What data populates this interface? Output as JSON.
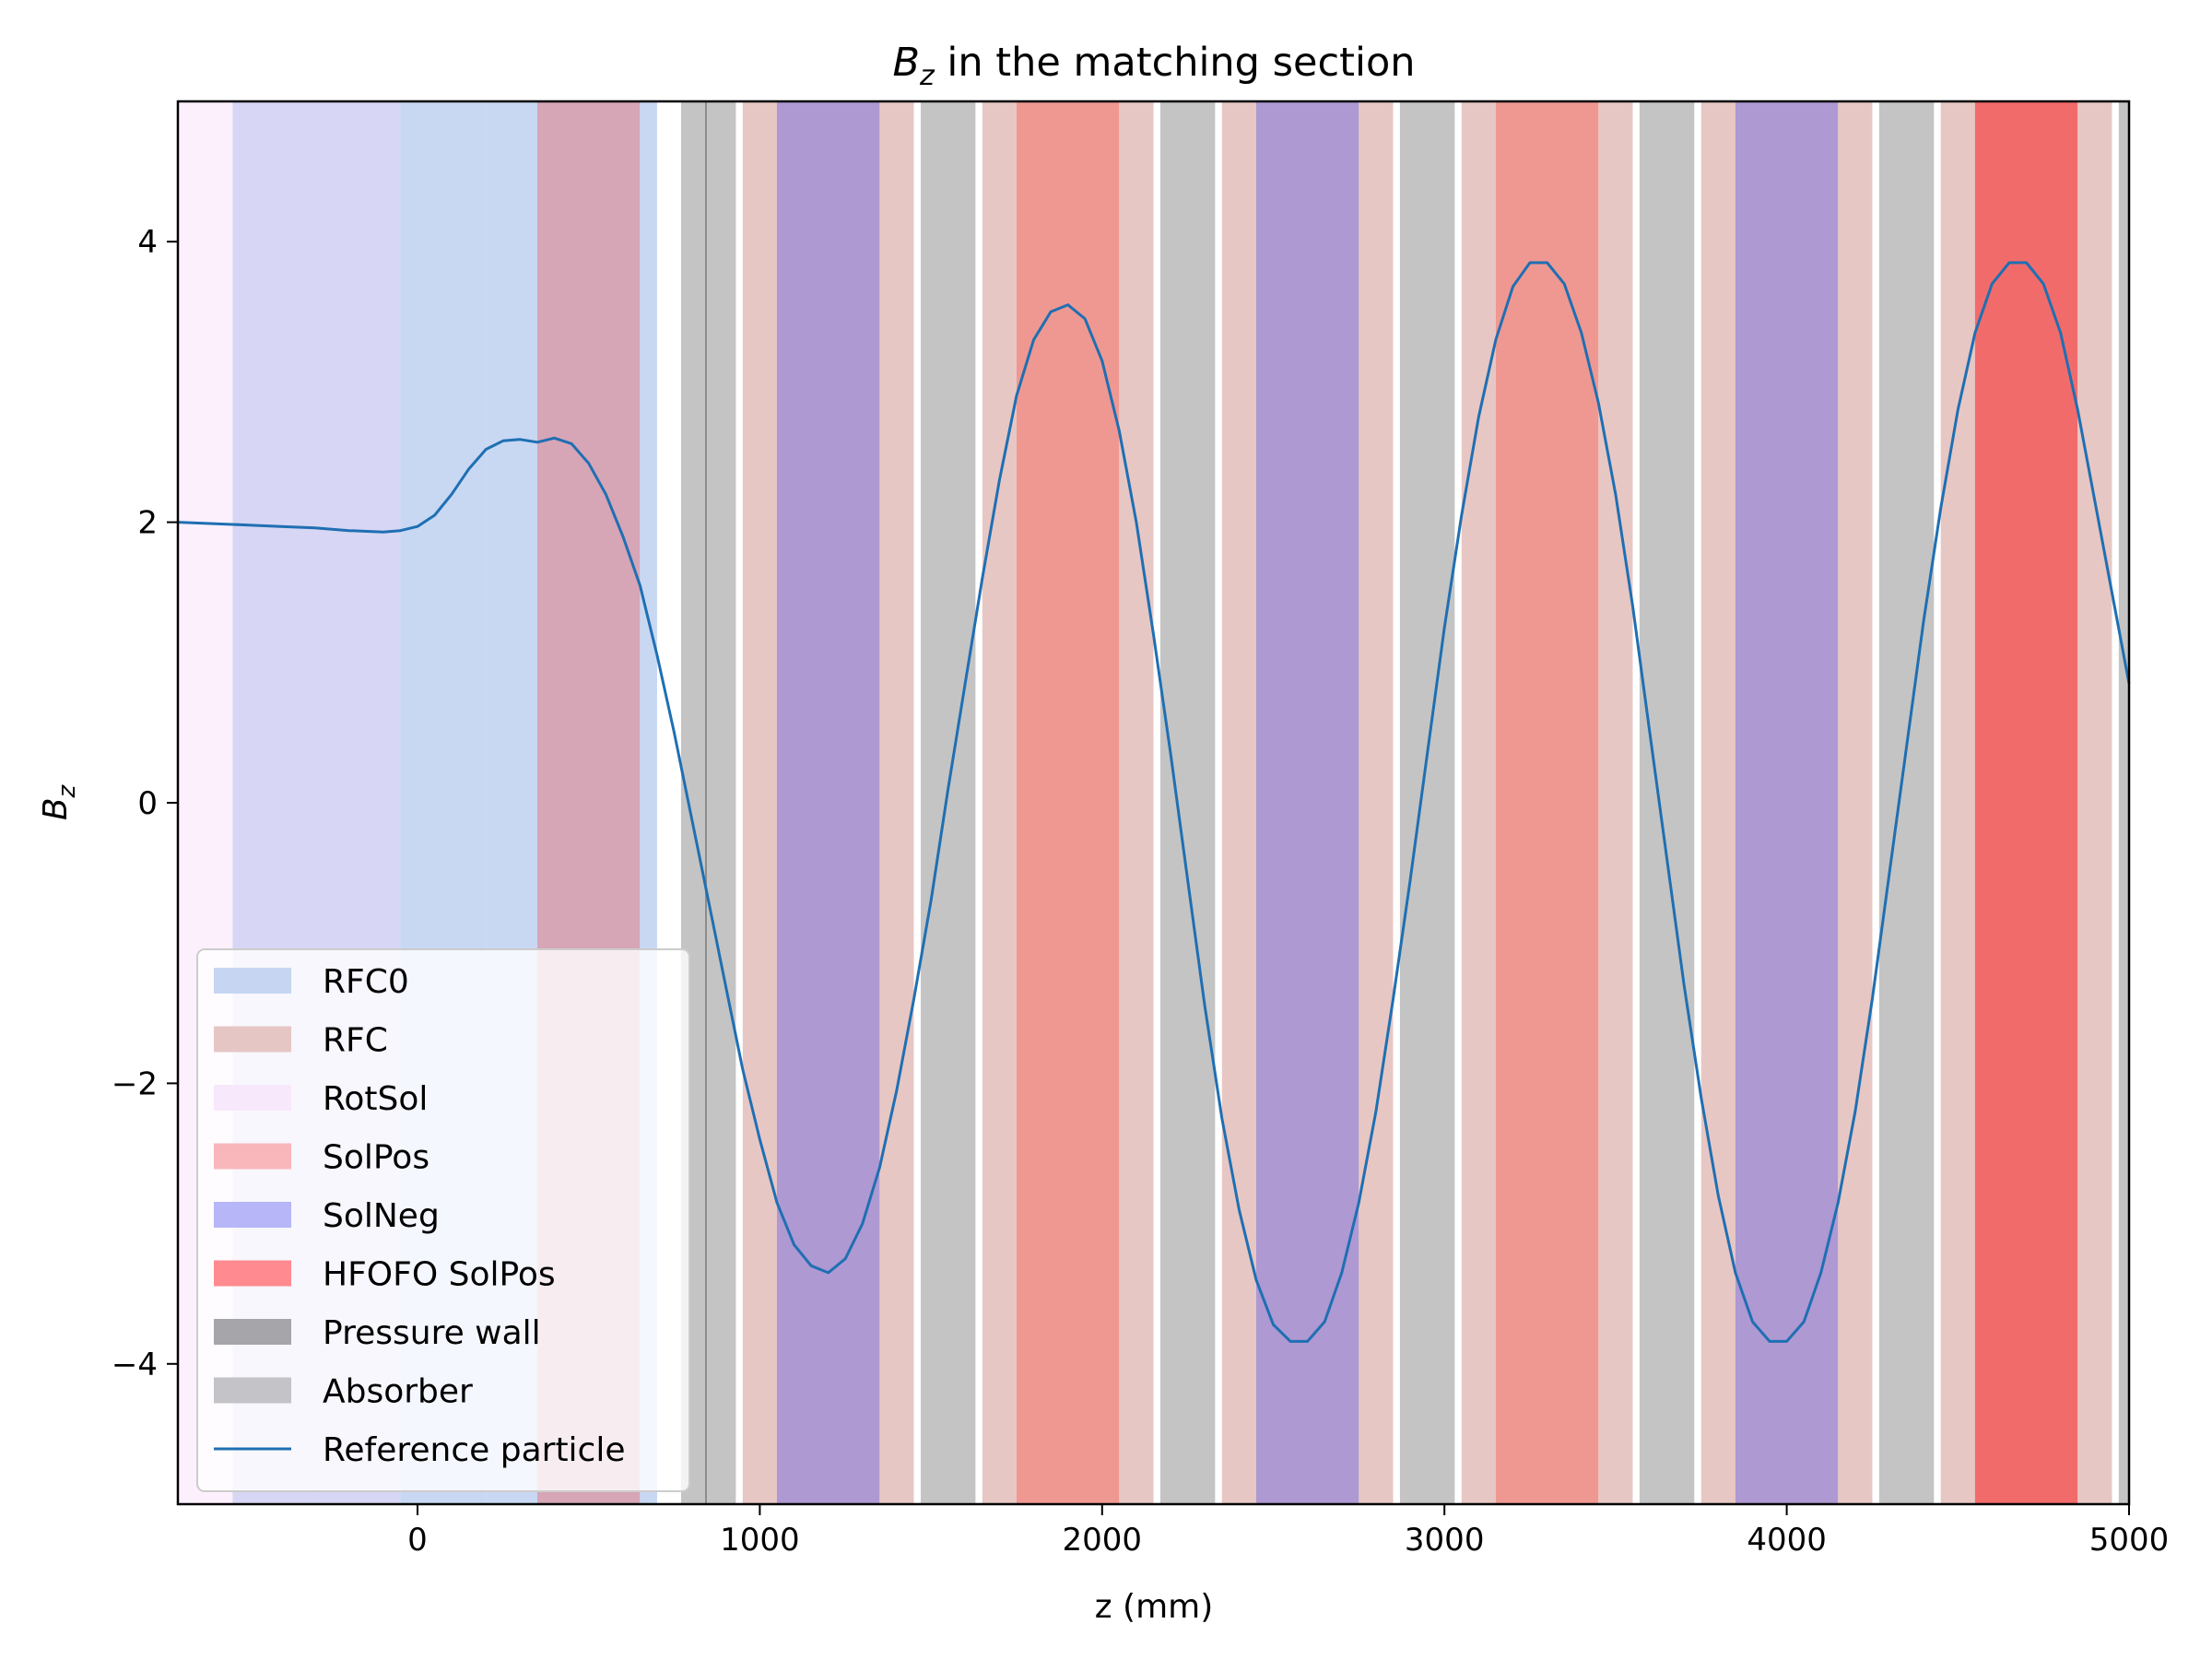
{
  "chart_data": {
    "type": "line",
    "title": "B_z in the matching section",
    "title_symbol": "B",
    "title_subscript": "z",
    "title_rest": " in the matching section",
    "xlabel": "z (mm)",
    "ylabel_symbol": "B",
    "ylabel_subscript": "z",
    "xlim": [
      -700,
      5000
    ],
    "ylim": [
      -5,
      5
    ],
    "xticks": [
      0,
      1000,
      2000,
      3000,
      4000,
      5000
    ],
    "xtick_labels": [
      "0",
      "1000",
      "2000",
      "3000",
      "4000",
      "5000"
    ],
    "yticks": [
      -4,
      -2,
      0,
      2,
      4
    ],
    "ytick_labels": [
      "−4",
      "−2",
      "0",
      "2",
      "4"
    ],
    "grid": false,
    "legend_position": "lower-left",
    "legend": [
      {
        "label": "RFC0",
        "color": "#c6d6f2",
        "kind": "patch"
      },
      {
        "label": "RFC",
        "color": "#e6c6c4",
        "kind": "patch"
      },
      {
        "label": "RotSol",
        "color": "#f8e8fb",
        "kind": "patch"
      },
      {
        "label": "SolPos",
        "color": "#f9b6bb",
        "kind": "patch"
      },
      {
        "label": "SolNeg",
        "color": "#b6b6f8",
        "kind": "patch"
      },
      {
        "label": "HFOFO SolPos",
        "color": "#ff8a8f",
        "kind": "patch"
      },
      {
        "label": "Pressure wall",
        "color": "#a6a6aa",
        "kind": "patch"
      },
      {
        "label": "Absorber",
        "color": "#c3c3c8",
        "kind": "patch"
      },
      {
        "label": "Reference particle",
        "color": "#1f6fb2",
        "kind": "line"
      }
    ],
    "regions": [
      {
        "category": "RotSol",
        "x0": -700,
        "x1": -540,
        "color": "#fdf0fd"
      },
      {
        "category": "RotSol",
        "x0": -540,
        "x1": -300,
        "color": "#d7d6f4"
      },
      {
        "category": "RotSol",
        "x0": -300,
        "x1": -50,
        "color": "#d7d6f4"
      },
      {
        "category": "RFC0",
        "x0": -50,
        "x1": 200,
        "color": "#c8d8f3"
      },
      {
        "category": "RFC0",
        "x0": 200,
        "x1": 350,
        "color": "#c8d8f3"
      },
      {
        "category": "RFC0",
        "x0": 350,
        "x1": 650,
        "color": "#d6a5b6"
      },
      {
        "category": "RFC0",
        "x0": 650,
        "x1": 700,
        "color": "#c8d8f3"
      },
      {
        "category": "Absorber",
        "x0": 770,
        "x1": 840,
        "color": "#c4c4c4"
      },
      {
        "category": "Pressure wall",
        "x0": 840,
        "x1": 846,
        "color": "#8c8c8c"
      },
      {
        "category": "Absorber",
        "x0": 846,
        "x1": 930,
        "color": "#c4c4c4"
      },
      {
        "category": "RFC",
        "x0": 950,
        "x1": 1050,
        "color": "#e7c7c4"
      },
      {
        "category": "SolNeg",
        "x0": 1050,
        "x1": 1350,
        "color": "#ae99d3"
      },
      {
        "category": "RFC",
        "x0": 1350,
        "x1": 1450,
        "color": "#e7c7c4"
      },
      {
        "category": "Absorber",
        "x0": 1470,
        "x1": 1630,
        "color": "#c4c4c4"
      },
      {
        "category": "RFC",
        "x0": 1650,
        "x1": 1750,
        "color": "#e7c7c4"
      },
      {
        "category": "SolPos",
        "x0": 1750,
        "x1": 2050,
        "color": "#ef9892"
      },
      {
        "category": "RFC",
        "x0": 2050,
        "x1": 2150,
        "color": "#e7c7c4"
      },
      {
        "category": "Absorber",
        "x0": 2170,
        "x1": 2330,
        "color": "#c4c4c4"
      },
      {
        "category": "RFC",
        "x0": 2350,
        "x1": 2450,
        "color": "#e7c7c4"
      },
      {
        "category": "SolNeg",
        "x0": 2450,
        "x1": 2750,
        "color": "#ae99d3"
      },
      {
        "category": "RFC",
        "x0": 2750,
        "x1": 2850,
        "color": "#e7c7c4"
      },
      {
        "category": "Absorber",
        "x0": 2870,
        "x1": 3030,
        "color": "#c4c4c4"
      },
      {
        "category": "RFC",
        "x0": 3050,
        "x1": 3150,
        "color": "#e7c7c4"
      },
      {
        "category": "SolPos",
        "x0": 3150,
        "x1": 3450,
        "color": "#ef9892"
      },
      {
        "category": "RFC",
        "x0": 3450,
        "x1": 3550,
        "color": "#e7c7c4"
      },
      {
        "category": "Absorber",
        "x0": 3570,
        "x1": 3730,
        "color": "#c4c4c4"
      },
      {
        "category": "RFC",
        "x0": 3750,
        "x1": 3850,
        "color": "#e7c7c4"
      },
      {
        "category": "SolNeg",
        "x0": 3850,
        "x1": 4150,
        "color": "#ae99d3"
      },
      {
        "category": "RFC",
        "x0": 4150,
        "x1": 4250,
        "color": "#e7c7c4"
      },
      {
        "category": "Absorber",
        "x0": 4270,
        "x1": 4430,
        "color": "#c4c4c4"
      },
      {
        "category": "RFC",
        "x0": 4450,
        "x1": 4550,
        "color": "#e7c7c4"
      },
      {
        "category": "HFOFO SolPos",
        "x0": 4550,
        "x1": 4850,
        "color": "#f26b6b"
      },
      {
        "category": "RFC",
        "x0": 4850,
        "x1": 4950,
        "color": "#e7c7c4"
      },
      {
        "category": "Absorber",
        "x0": 4970,
        "x1": 5000,
        "color": "#c4c4c4"
      }
    ],
    "series": [
      {
        "name": "Reference particle",
        "color": "#1f6fb2",
        "x": [
          -700,
          -600,
          -500,
          -400,
          -300,
          -200,
          -100,
          -50,
          0,
          50,
          100,
          150,
          200,
          250,
          300,
          350,
          400,
          450,
          500,
          550,
          600,
          650,
          700,
          750,
          800,
          850,
          900,
          950,
          1000,
          1050,
          1100,
          1150,
          1200,
          1250,
          1300,
          1350,
          1400,
          1450,
          1500,
          1550,
          1600,
          1650,
          1700,
          1750,
          1800,
          1850,
          1900,
          1950,
          2000,
          2050,
          2100,
          2150,
          2200,
          2250,
          2300,
          2350,
          2400,
          2450,
          2500,
          2550,
          2600,
          2650,
          2700,
          2750,
          2800,
          2850,
          2900,
          2950,
          3000,
          3050,
          3100,
          3150,
          3200,
          3250,
          3300,
          3350,
          3400,
          3450,
          3500,
          3550,
          3600,
          3650,
          3700,
          3750,
          3800,
          3850,
          3900,
          3950,
          4000,
          4050,
          4100,
          4150,
          4200,
          4250,
          4300,
          4350,
          4400,
          4450,
          4500,
          4550,
          4600,
          4650,
          4700,
          4750,
          4800,
          4850,
          4900,
          4950,
          5000
        ],
        "y": [
          2.0,
          1.99,
          1.98,
          1.97,
          1.96,
          1.94,
          1.93,
          1.94,
          1.97,
          2.05,
          2.2,
          2.38,
          2.52,
          2.58,
          2.59,
          2.57,
          2.6,
          2.56,
          2.42,
          2.2,
          1.9,
          1.55,
          1.05,
          0.5,
          -0.1,
          -0.7,
          -1.3,
          -1.9,
          -2.4,
          -2.85,
          -3.15,
          -3.3,
          -3.35,
          -3.25,
          -3.0,
          -2.6,
          -2.05,
          -1.4,
          -0.7,
          0.1,
          0.85,
          1.6,
          2.3,
          2.9,
          3.3,
          3.5,
          3.55,
          3.45,
          3.15,
          2.65,
          2.0,
          1.2,
          0.35,
          -0.55,
          -1.45,
          -2.25,
          -2.9,
          -3.4,
          -3.72,
          -3.84,
          -3.84,
          -3.7,
          -3.35,
          -2.85,
          -2.2,
          -1.4,
          -0.55,
          0.35,
          1.25,
          2.05,
          2.75,
          3.3,
          3.68,
          3.85,
          3.85,
          3.7,
          3.35,
          2.85,
          2.2,
          1.4,
          0.5,
          -0.4,
          -1.3,
          -2.1,
          -2.8,
          -3.35,
          -3.7,
          -3.84,
          -3.84,
          -3.7,
          -3.35,
          -2.85,
          -2.2,
          -1.4,
          -0.5,
          0.4,
          1.3,
          2.1,
          2.8,
          3.35,
          3.7,
          3.85,
          3.85,
          3.7,
          3.35,
          2.8,
          2.15,
          1.5,
          0.85
        ]
      }
    ]
  }
}
